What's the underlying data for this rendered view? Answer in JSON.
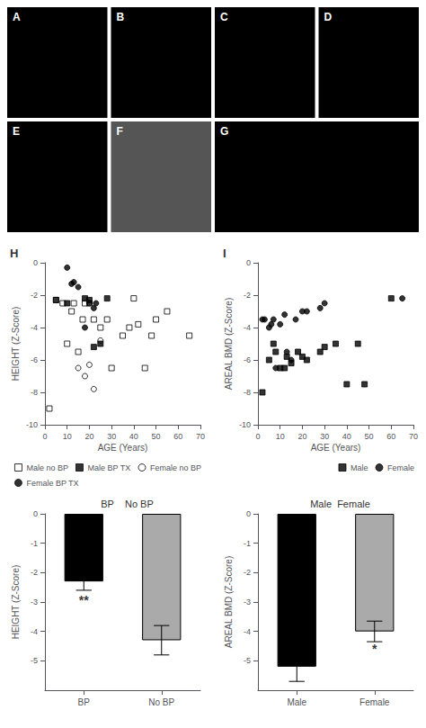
{
  "chart_data": [
    {
      "type": "image",
      "title": "A",
      "color": "black"
    },
    {
      "type": "image",
      "title": "B",
      "color": "black"
    },
    {
      "type": "image",
      "title": "C",
      "color": "black"
    },
    {
      "type": "image",
      "title": "D",
      "color": "black"
    },
    {
      "type": "image",
      "title": "E",
      "color": "black"
    },
    {
      "type": "image",
      "title": "F",
      "color": "#555555"
    },
    {
      "type": "image",
      "title": "G",
      "color": "black"
    },
    {
      "type": "scatter",
      "title": "H",
      "xlabel": "AGE (Years)",
      "ylabel": "HEIGHT (Z-Score)",
      "xlim": [
        0,
        70
      ],
      "ylim": [
        -10,
        0
      ],
      "xticks": [
        0,
        10,
        20,
        30,
        40,
        50,
        60,
        70
      ],
      "yticks": [
        0,
        -2,
        -4,
        -6,
        -8,
        -10
      ],
      "grid": false,
      "legend": "lower right",
      "series": [
        {
          "name": "Male no BP",
          "color": "black",
          "marker": "open_square",
          "x": [
            2,
            5,
            8,
            10,
            12,
            13,
            15,
            17,
            18,
            20,
            22,
            25,
            28,
            30,
            35,
            38,
            40,
            42,
            45,
            48,
            50,
            55,
            65
          ],
          "values": [
            -9,
            -2.3,
            -2.5,
            -5,
            -3,
            -2.5,
            -5.5,
            -3.5,
            -2.5,
            -2.5,
            -3.5,
            -4,
            -3.5,
            -6.5,
            -4.5,
            -4,
            -2.2,
            -3.8,
            -6.5,
            -4.5,
            -3.5,
            -3,
            -4.5
          ]
        },
        {
          "name": "Male BP TX",
          "color": "black",
          "marker": "square",
          "x": [
            5,
            10,
            18,
            20,
            22,
            25,
            28
          ],
          "values": [
            -2.3,
            -2.5,
            -2.2,
            -2.3,
            -5.2,
            -5,
            -2.2
          ]
        },
        {
          "name": "Female no BP",
          "color": "black",
          "marker": "open_circle",
          "x": [
            15,
            18,
            20,
            22,
            25
          ],
          "values": [
            -6.5,
            -7,
            -6.3,
            -7.8,
            -4.8
          ]
        },
        {
          "name": "Female BP TX",
          "color": "black",
          "marker": "circle",
          "x": [
            10,
            12,
            13,
            15,
            18,
            20,
            22,
            23
          ],
          "values": [
            -0.3,
            -1.3,
            -1.2,
            -1.5,
            -4,
            -2.5,
            -2.8,
            -2.5
          ]
        }
      ]
    },
    {
      "type": "scatter",
      "title": "I",
      "xlabel": "AGE (Years)",
      "ylabel": "AREAL BMD (Z-Score)",
      "xlim": [
        0,
        70
      ],
      "ylim": [
        -10,
        0
      ],
      "xticks": [
        0,
        10,
        20,
        30,
        40,
        50,
        60,
        70
      ],
      "yticks": [
        0,
        -2,
        -4,
        -6,
        -8,
        -10
      ],
      "grid": false,
      "legend": "lower right",
      "series": [
        {
          "name": "Male",
          "color": "black",
          "marker": "square",
          "x": [
            2,
            5,
            7,
            8,
            10,
            12,
            13,
            15,
            18,
            20,
            22,
            28,
            30,
            35,
            40,
            45,
            48,
            60
          ],
          "values": [
            -8,
            -6,
            -5,
            -5.5,
            -6.5,
            -6.5,
            -5.8,
            -6.2,
            -5.5,
            -5.8,
            -6,
            -5.5,
            -5.2,
            -5,
            -7.5,
            -5,
            -7.5,
            -2.2
          ]
        },
        {
          "name": "Female",
          "color": "black",
          "marker": "circle",
          "x": [
            2,
            3,
            5,
            6,
            7,
            8,
            10,
            12,
            13,
            15,
            17,
            20,
            22,
            28,
            30,
            65
          ],
          "values": [
            -3.5,
            -3.5,
            -4,
            -3.8,
            -3.5,
            -6.5,
            -3.8,
            -3.2,
            -5.5,
            -6,
            -3.5,
            -3,
            -3,
            -2.8,
            -2.5,
            -2.2
          ]
        }
      ]
    },
    {
      "type": "bar",
      "title": "BP    No BP",
      "ylabel": "HEIGHT (Z-Score)",
      "categories": [
        "BP",
        "No BP"
      ],
      "values": [
        -2.3,
        -4.3
      ],
      "errors": [
        0.3,
        0.5
      ],
      "colors": [
        "black",
        "#aaaaaa"
      ],
      "ylim": [
        -6,
        0
      ],
      "yticks": [
        0,
        -1,
        -2,
        -3,
        -4,
        -5
      ],
      "grid": false,
      "annotations": [
        {
          "text": "**",
          "x": "BP",
          "y": -2.95
        }
      ]
    },
    {
      "type": "bar",
      "title": "Male  Female",
      "ylabel": "AREAL BMD (Z-Score)",
      "categories": [
        "Male",
        "Female"
      ],
      "values": [
        -5.2,
        -4.0
      ],
      "errors": [
        0.5,
        0.35
      ],
      "colors": [
        "black",
        "#aaaaaa"
      ],
      "ylim": [
        -6,
        0
      ],
      "yticks": [
        0,
        -1,
        -2,
        -3,
        -4,
        -5
      ],
      "grid": false,
      "annotations": [
        {
          "text": "*",
          "x": "Female",
          "y": -4.6
        }
      ]
    }
  ]
}
